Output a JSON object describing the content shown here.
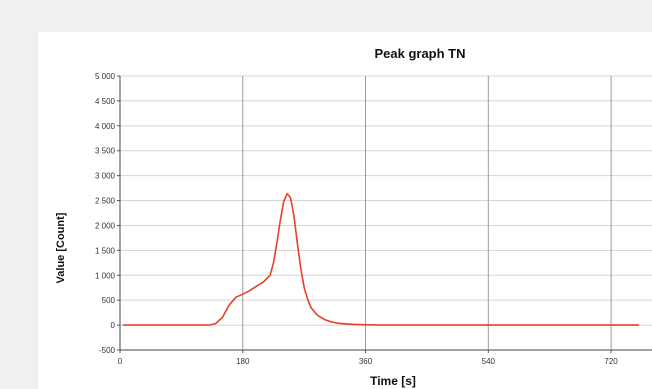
{
  "chart_data": {
    "type": "line",
    "title": "Peak graph TN",
    "xlabel": "Time [s]",
    "ylabel": "Value [Count]",
    "xlim": [
      0,
      780
    ],
    "ylim": [
      -500,
      5000
    ],
    "x_ticks": [
      0,
      180,
      360,
      540,
      720
    ],
    "x_tick_labels": [
      "0",
      "180",
      "360",
      "540",
      "720"
    ],
    "y_ticks": [
      -500,
      0,
      500,
      1000,
      1500,
      2000,
      2500,
      3000,
      3500,
      4000,
      4500,
      5000
    ],
    "y_tick_labels": [
      "-500",
      "0",
      "500",
      "1 000",
      "1 500",
      "2 000",
      "2 500",
      "3 000",
      "3 500",
      "4 000",
      "4 500",
      "5 000"
    ],
    "grid": true,
    "legend": "none",
    "series": [
      {
        "color": "#e8402a",
        "x": [
          5,
          60,
          100,
          130,
          140,
          150,
          160,
          170,
          180,
          190,
          200,
          210,
          220,
          225,
          230,
          235,
          240,
          245,
          250,
          255,
          260,
          265,
          270,
          275,
          280,
          290,
          300,
          310,
          320,
          340,
          360,
          380,
          400,
          450,
          500,
          550,
          600,
          650,
          700,
          740,
          760
        ],
        "y": [
          0,
          0,
          0,
          0,
          30,
          150,
          400,
          560,
          620,
          690,
          780,
          860,
          1000,
          1250,
          1650,
          2100,
          2480,
          2640,
          2560,
          2200,
          1650,
          1150,
          750,
          520,
          350,
          190,
          110,
          65,
          35,
          15,
          5,
          0,
          0,
          0,
          0,
          0,
          0,
          0,
          0,
          0,
          0
        ]
      }
    ]
  }
}
